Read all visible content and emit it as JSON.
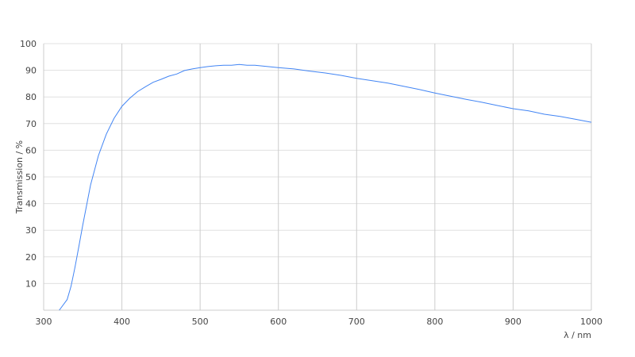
{
  "chart_data": {
    "type": "line",
    "title": "",
    "xlabel": "λ / nm",
    "ylabel": "Transmission / %",
    "xlim": [
      300,
      1000
    ],
    "ylim": [
      0,
      100
    ],
    "xticks": [
      300,
      400,
      500,
      600,
      700,
      800,
      900,
      1000
    ],
    "yticks": [
      10,
      20,
      30,
      40,
      50,
      60,
      70,
      80,
      90,
      100
    ],
    "grid": true,
    "line_color": "#4285f4",
    "series": [
      {
        "x": [
          320,
          330,
          335,
          340,
          345,
          350,
          360,
          370,
          380,
          390,
          400,
          410,
          420,
          430,
          440,
          450,
          460,
          470,
          480,
          490,
          500,
          510,
          520,
          530,
          540,
          550,
          560,
          570,
          580,
          600,
          620,
          640,
          660,
          680,
          700,
          720,
          740,
          760,
          780,
          800,
          820,
          840,
          860,
          880,
          900,
          920,
          940,
          960,
          980,
          1000
        ],
        "y": [
          0,
          4,
          9,
          16,
          24,
          32,
          47,
          58,
          66,
          72,
          76.5,
          79.5,
          82,
          83.8,
          85.5,
          86.6,
          87.8,
          88.6,
          89.9,
          90.5,
          91,
          91.4,
          91.7,
          91.9,
          91.9,
          92.2,
          91.9,
          91.9,
          91.6,
          91,
          90.5,
          89.7,
          89,
          88.1,
          87,
          86.1,
          85.2,
          84,
          82.8,
          81.5,
          80.3,
          79.1,
          78,
          76.8,
          75.6,
          74.8,
          73.5,
          72.7,
          71.6,
          70.5
        ]
      }
    ]
  }
}
